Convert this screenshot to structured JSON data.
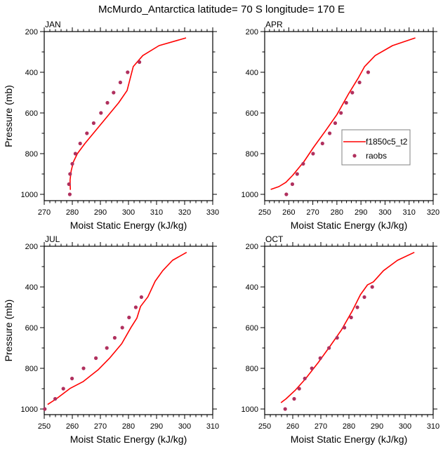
{
  "title": "McMurdo_Antarctica  latitude= 70 S longitude= 170 E",
  "colors": {
    "model_line": "#ff0000",
    "obs_marker": "#b0305e",
    "frame": "#000000",
    "legend_border": "#808080"
  },
  "legend": {
    "placement": "panel APR, lower-right",
    "entries": [
      {
        "label": "f1850c5_t2",
        "kind": "line"
      },
      {
        "label": "raobs",
        "kind": "marker"
      }
    ]
  },
  "chart_data": [
    {
      "type": "line",
      "title": "JAN",
      "xlabel": "Moist Static Energy (kJ/kg)",
      "ylabel": "Pressure (mb)",
      "xlim": [
        270,
        330
      ],
      "xticks": [
        270,
        280,
        290,
        300,
        310,
        320,
        330
      ],
      "ylim": [
        200,
        1030
      ],
      "yticks": [
        200,
        400,
        600,
        800,
        1000
      ],
      "y_inverted": true,
      "series": [
        {
          "name": "f1850c5_t2",
          "kind": "line",
          "x": [
            279.3,
            279.2,
            279.6,
            280.4,
            281.8,
            284.5,
            287.5,
            290.5,
            293.5,
            296.5,
            299.5,
            301.7,
            305.1,
            310.9,
            320.5
          ],
          "y": [
            978,
            930,
            884,
            840,
            800,
            750,
            700,
            650,
            600,
            550,
            490,
            372,
            318,
            269,
            231
          ]
        },
        {
          "name": "raobs",
          "kind": "scatter",
          "x": [
            279.1,
            278.8,
            279.2,
            280.0,
            281.1,
            282.8,
            285.2,
            287.6,
            290.2,
            292.5,
            294.7,
            297.1,
            299.7,
            303.9
          ],
          "y": [
            1000,
            950,
            900,
            850,
            800,
            750,
            700,
            650,
            600,
            550,
            500,
            450,
            400,
            350
          ]
        }
      ]
    },
    {
      "type": "line",
      "title": "APR",
      "xlabel": "Moist Static Energy (kJ/kg)",
      "ylabel": "",
      "xlim": [
        250,
        320
      ],
      "xticks": [
        250,
        260,
        270,
        280,
        290,
        300,
        310,
        320
      ],
      "ylim": [
        200,
        1030
      ],
      "yticks": [
        200,
        400,
        600,
        800,
        1000
      ],
      "y_inverted": true,
      "series": [
        {
          "name": "f1850c5_t2",
          "kind": "line",
          "x": [
            252.5,
            255.9,
            258.8,
            261.6,
            266.4,
            270.3,
            275.2,
            280.0,
            284.9,
            288.8,
            291.5,
            295.9,
            303.1,
            312.6
          ],
          "y": [
            976,
            962,
            941,
            907,
            838,
            769,
            689,
            608,
            505,
            430,
            372,
            318,
            269,
            231
          ]
        },
        {
          "name": "raobs",
          "kind": "scatter",
          "x": [
            259.0,
            261.5,
            263.5,
            266.0,
            270.1,
            274.0,
            277.0,
            279.3,
            281.7,
            283.9,
            286.4,
            289.4,
            293.0
          ],
          "y": [
            1000,
            950,
            900,
            850,
            800,
            750,
            700,
            650,
            600,
            550,
            500,
            450,
            400
          ]
        }
      ]
    },
    {
      "type": "line",
      "title": "JUL",
      "xlabel": "Moist Static Energy (kJ/kg)",
      "ylabel": "Pressure (mb)",
      "xlim": [
        250,
        310
      ],
      "xticks": [
        250,
        260,
        270,
        280,
        290,
        300,
        310
      ],
      "ylim": [
        200,
        1030
      ],
      "yticks": [
        200,
        400,
        600,
        800,
        1000
      ],
      "y_inverted": true,
      "series": [
        {
          "name": "f1850c5_t2",
          "kind": "line",
          "x": [
            251.2,
            254.3,
            259.3,
            263.8,
            269.3,
            273.4,
            277.6,
            280.9,
            283.0,
            284.3,
            286.9,
            289.5,
            292.2,
            295.7,
            300.7
          ],
          "y": [
            978,
            950,
            898,
            866,
            806,
            748,
            679,
            599,
            553,
            496,
            449,
            372,
            320,
            269,
            230
          ]
        },
        {
          "name": "raobs",
          "kind": "scatter",
          "x": [
            250.2,
            253.9,
            256.8,
            259.9,
            264.0,
            268.4,
            272.3,
            275.1,
            277.8,
            280.2,
            282.6,
            284.6
          ],
          "y": [
            1000,
            950,
            900,
            850,
            800,
            750,
            700,
            650,
            600,
            550,
            500,
            450
          ]
        }
      ]
    },
    {
      "type": "line",
      "title": "OCT",
      "xlabel": "Moist Static Energy (kJ/kg)",
      "ylabel": "",
      "xlim": [
        250,
        310
      ],
      "xticks": [
        250,
        260,
        270,
        280,
        290,
        300,
        310
      ],
      "ylim": [
        200,
        1030
      ],
      "yticks": [
        200,
        400,
        600,
        800,
        1000
      ],
      "y_inverted": true,
      "series": [
        {
          "name": "f1850c5_t2",
          "kind": "line",
          "x": [
            255.8,
            257.6,
            260.8,
            264.5,
            269.1,
            273.3,
            277.4,
            281.2,
            284.1,
            286.6,
            288.7,
            292.3,
            297.3,
            303.3
          ],
          "y": [
            969,
            950,
            909,
            852,
            771,
            691,
            610,
            518,
            438,
            390,
            375,
            320,
            269,
            230
          ]
        },
        {
          "name": "raobs",
          "kind": "scatter",
          "x": [
            257.3,
            260.5,
            262.3,
            264.3,
            266.8,
            269.8,
            272.9,
            275.8,
            278.4,
            280.8,
            283.0,
            285.5,
            288.3
          ],
          "y": [
            1000,
            950,
            900,
            850,
            800,
            750,
            700,
            650,
            600,
            550,
            500,
            450,
            400
          ]
        }
      ]
    }
  ]
}
